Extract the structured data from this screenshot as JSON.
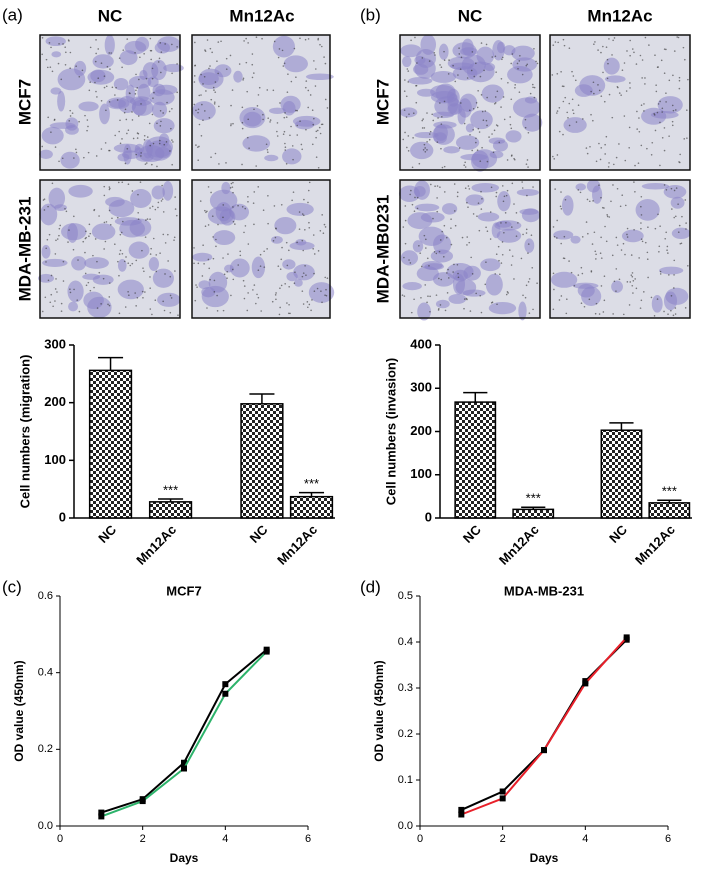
{
  "figure": {
    "panels": [
      {
        "label": "(a)",
        "columns": [
          "NC",
          "Mn12Ac"
        ],
        "rows": [
          "MCF7",
          "MDA-MB-231"
        ]
      },
      {
        "label": "(b)",
        "columns": [
          "NC",
          "Mn12Ac"
        ],
        "rows": [
          "MCF7",
          "MDA-MB0231"
        ]
      },
      {
        "label": "(c)"
      },
      {
        "label": "(d)"
      }
    ]
  },
  "chart_data": [
    {
      "type": "bar",
      "y_label": "Cell numbers (migration)",
      "categories": [
        "NC",
        "Mn12Ac",
        "NC",
        "Mn12Ac"
      ],
      "values": [
        256,
        28,
        198,
        37
      ],
      "errors": [
        22,
        5,
        17,
        7
      ],
      "annotations": [
        null,
        "***",
        null,
        "***"
      ],
      "ylim": [
        0,
        300
      ],
      "yticks": [
        0,
        100,
        200,
        300
      ]
    },
    {
      "type": "bar",
      "y_label": "Cell numbers (invasion)",
      "categories": [
        "NC",
        "Mn12Ac",
        "NC",
        "Mn12Ac"
      ],
      "values": [
        268,
        20,
        203,
        35
      ],
      "errors": [
        22,
        5,
        17,
        6
      ],
      "annotations": [
        null,
        "***",
        null,
        "***"
      ],
      "ylim": [
        0,
        400
      ],
      "yticks": [
        0,
        100,
        200,
        300,
        400
      ]
    },
    {
      "type": "line",
      "title": "MCF7",
      "x_label": "Days",
      "y_label": "OD value (450nm)",
      "x": [
        1,
        2,
        3,
        4,
        5
      ],
      "series": [
        {
          "color": "#000000",
          "values": [
            0.035,
            0.07,
            0.165,
            0.37,
            0.46
          ]
        },
        {
          "color": "#2db36b",
          "values": [
            0.025,
            0.065,
            0.15,
            0.345,
            0.455
          ]
        }
      ],
      "xlim": [
        0,
        6
      ],
      "xticks": [
        0,
        2,
        4,
        6
      ],
      "ylim": [
        0,
        0.6
      ],
      "yticks": [
        {
          "value": 0,
          "label": "0.0"
        },
        0.2,
        0.4,
        0.6
      ]
    },
    {
      "type": "line",
      "title": "MDA-MB-231",
      "x_label": "Days",
      "y_label": "OD value (450nm)",
      "x": [
        1,
        2,
        3,
        4,
        5
      ],
      "series": [
        {
          "color": "#000000",
          "values": [
            0.035,
            0.075,
            0.165,
            0.315,
            0.405
          ]
        },
        {
          "color": "#e8202a",
          "values": [
            0.025,
            0.06,
            0.165,
            0.31,
            0.41
          ]
        }
      ],
      "xlim": [
        0,
        6
      ],
      "xticks": [
        0,
        2,
        4,
        6
      ],
      "ylim": [
        0,
        0.5
      ],
      "yticks": [
        {
          "value": 0,
          "label": "0.0"
        },
        0.1,
        0.2,
        0.3,
        0.4,
        0.5
      ]
    }
  ]
}
